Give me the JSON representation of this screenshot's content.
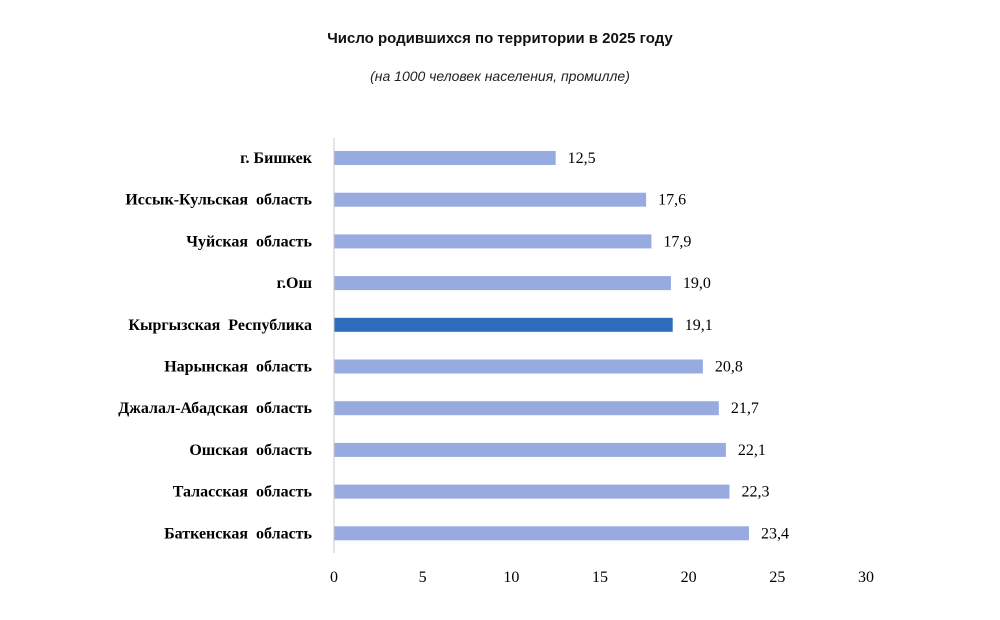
{
  "chart_data": {
    "type": "bar",
    "orientation": "horizontal",
    "title": "Число родившихся по территории в 2025 году",
    "subtitle": "(на 1000 человек населения, промилле)",
    "categories": [
      "г. Бишкек",
      "Иссык-Кульская  область",
      "Чуйская  область",
      "г.Ош",
      "Кыргызская  Республика",
      "Нарынская  область",
      "Джалал-Абадская  область",
      "Ошская  область",
      "Таласская  область",
      "Баткенская  область"
    ],
    "values": [
      12.5,
      17.6,
      17.9,
      19.0,
      19.1,
      20.8,
      21.7,
      22.1,
      22.3,
      23.4
    ],
    "value_labels": [
      "12,5",
      "17,6",
      "17,9",
      "19,0",
      "19,1",
      "20,8",
      "21,7",
      "22,1",
      "22,3",
      "23,4"
    ],
    "highlight_index": 4,
    "xlim": [
      0,
      30
    ],
    "xticks": [
      0,
      5,
      10,
      15,
      20,
      25,
      30
    ],
    "grid": false,
    "colors": {
      "bar": "#98abe0",
      "highlight": "#2e6dbd",
      "axis": "#c8c8c8"
    }
  }
}
